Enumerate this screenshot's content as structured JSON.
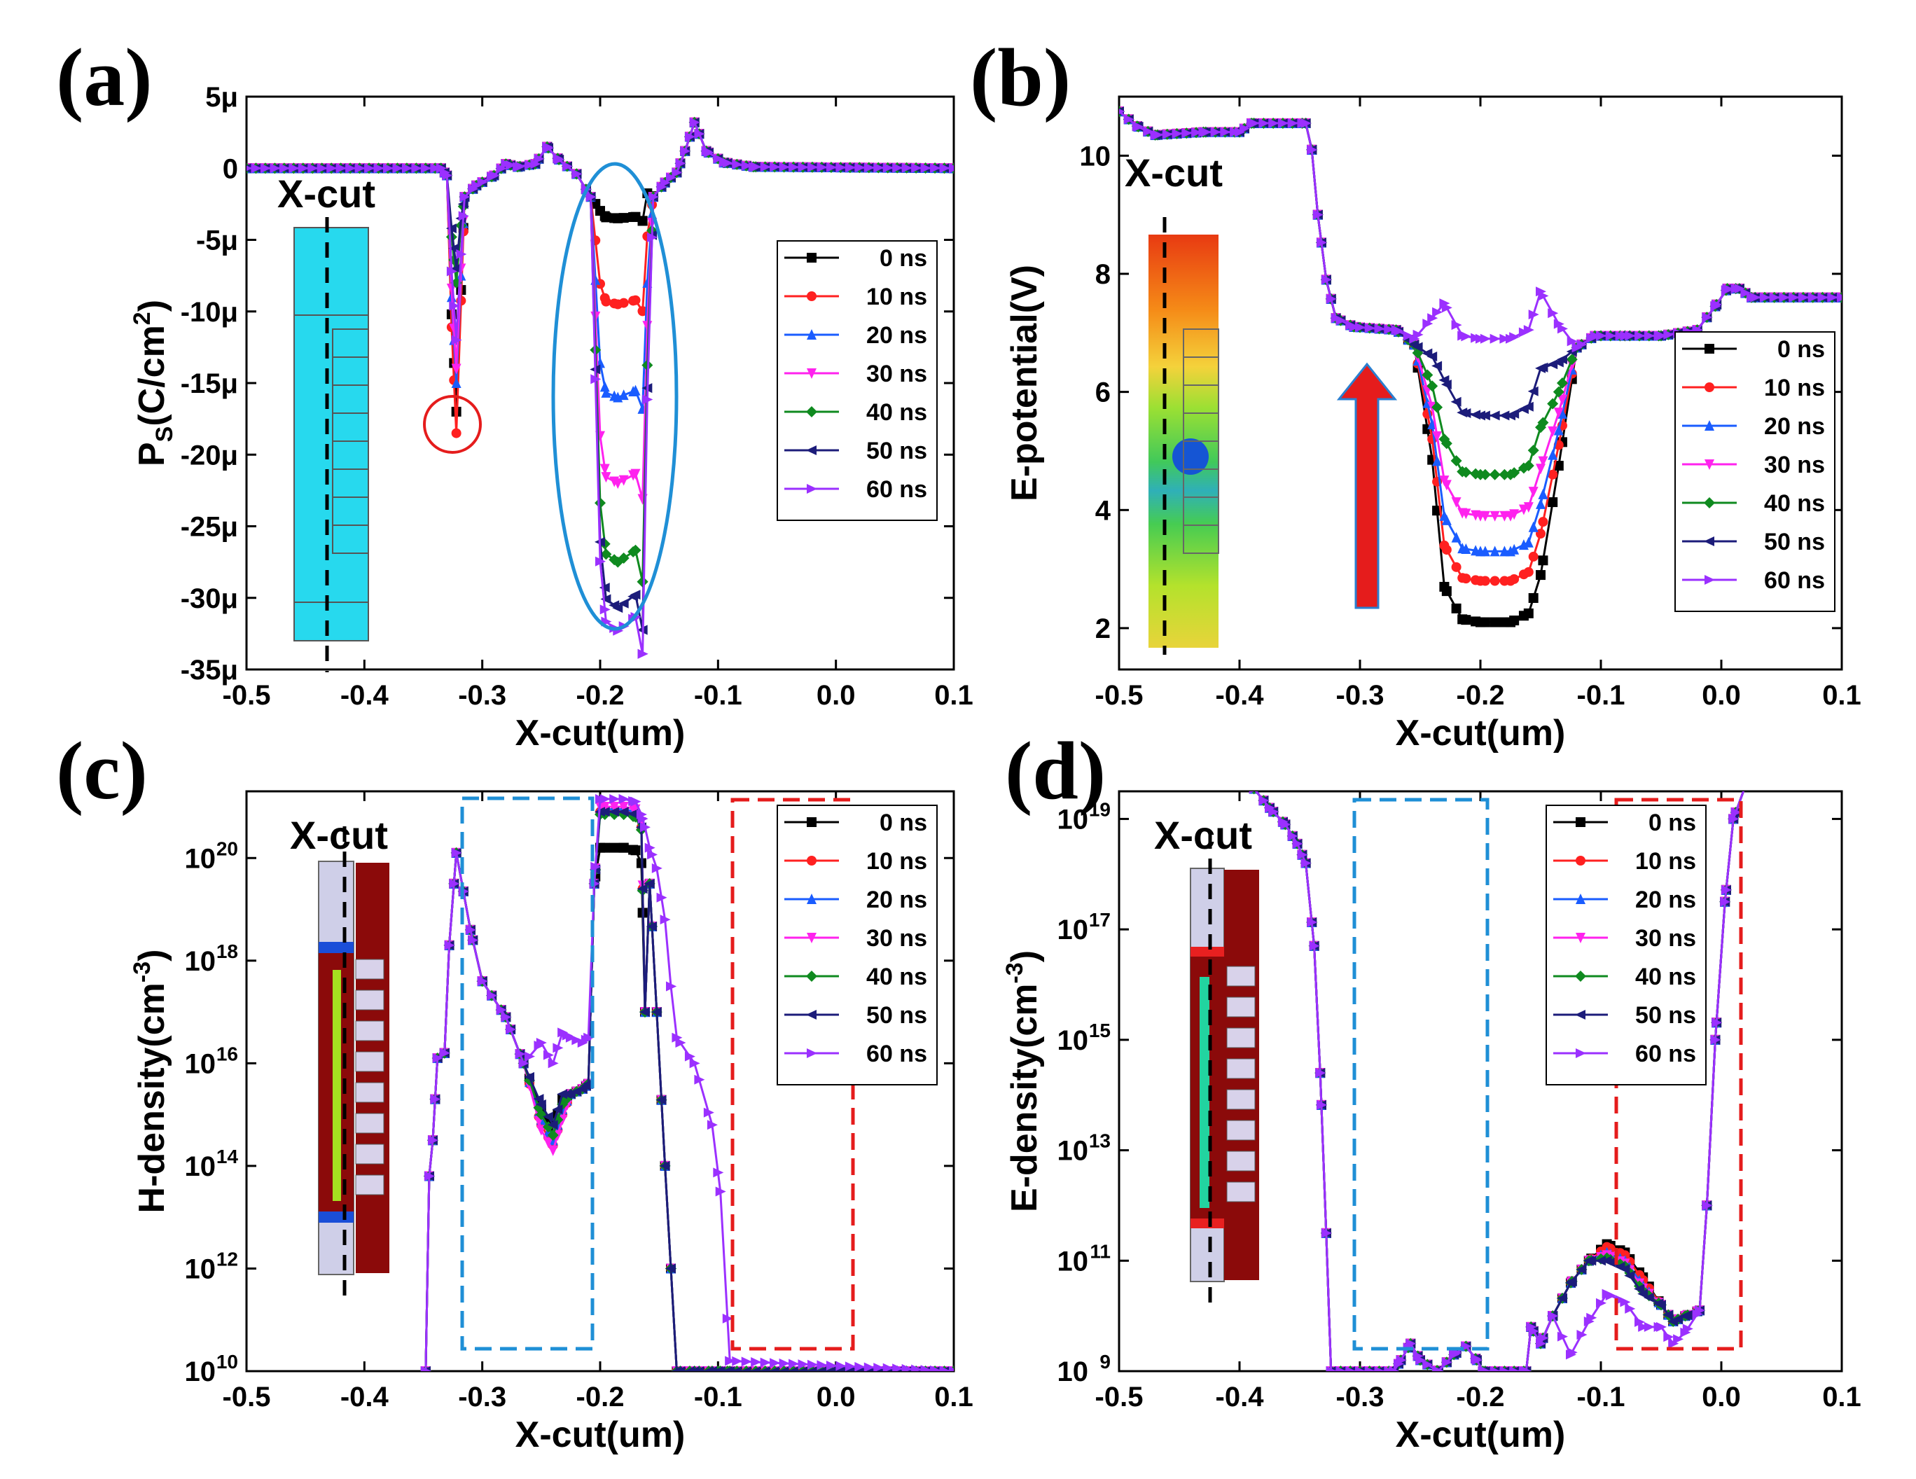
{
  "colors": {
    "0 ns": "#000000",
    "10 ns": "#ff2020",
    "20 ns": "#1a5cff",
    "30 ns": "#ff22ee",
    "40 ns": "#0f8a1f",
    "50 ns": "#1c1c7a",
    "60 ns": "#9b30ff",
    "highlight_blue": "#1f8fd6",
    "highlight_red": "#e51c1c",
    "arrow_fill": "#e51c1c",
    "arrow_edge": "#2a7fd0"
  },
  "chart_data": [
    {
      "panel": "(a)",
      "type": "line",
      "xlabel": "X-cut(um)",
      "ylabel": "P_S(C/cm^2)",
      "ylabel_parts": [
        "P",
        "S",
        "(C/cm",
        "2",
        ")"
      ],
      "xlim": [
        -0.5,
        0.1
      ],
      "ylim": [
        -35,
        5
      ],
      "yscale": "linear",
      "xticks": [
        -0.5,
        -0.4,
        -0.3,
        -0.2,
        -0.1,
        0.0,
        0.1
      ],
      "xtick_labels": [
        "-0.5",
        "-0.4",
        "-0.3",
        "-0.2",
        "-0.1",
        "0.0",
        "0.1"
      ],
      "yticks": [
        5,
        0,
        -5,
        -10,
        -15,
        -20,
        -25,
        -30,
        -35
      ],
      "ytick_labels": [
        "5μ",
        "0",
        "-5μ",
        "-10μ",
        "-15μ",
        "-20μ",
        "-25μ",
        "-30μ",
        "-35μ"
      ],
      "inset_label": "X-cut",
      "legend_position": "right",
      "annotations": [
        "red circle near x=-0.32 (dip)",
        "blue ellipse around -0.2 to -0.16 trough"
      ],
      "series": [
        {
          "name": "0 ns",
          "trough": -3.5,
          "dip": -17
        },
        {
          "name": "10 ns",
          "trough": -9.5,
          "dip": -18.5
        },
        {
          "name": "20 ns",
          "trough": -16,
          "dip": -15
        },
        {
          "name": "30 ns",
          "trough": -22,
          "dip": -14
        },
        {
          "name": "40 ns",
          "trough": -27.5,
          "dip": -8
        },
        {
          "name": "50 ns",
          "trough": -30.7,
          "dip": -7
        },
        {
          "name": "60 ns",
          "trough": -32.3,
          "dip": -12
        }
      ]
    },
    {
      "panel": "(b)",
      "type": "line",
      "xlabel": "X-cut(um)",
      "ylabel": "E-potential(V)",
      "xlim": [
        -0.5,
        0.1
      ],
      "ylim": [
        1.3,
        11
      ],
      "yscale": "linear",
      "xticks": [
        -0.5,
        -0.4,
        -0.3,
        -0.2,
        -0.1,
        0.0,
        0.1
      ],
      "xtick_labels": [
        "-0.5",
        "-0.4",
        "-0.3",
        "-0.2",
        "-0.1",
        "0.0",
        "0.1"
      ],
      "yticks": [
        10,
        8,
        6,
        4,
        2
      ],
      "ytick_labels": [
        "10",
        "8",
        "6",
        "4",
        "2"
      ],
      "inset_label": "X-cut",
      "legend_position": "right",
      "annotations": [
        "red upward arrow at x≈-0.3"
      ],
      "series": [
        {
          "name": "0 ns",
          "min": 2.1
        },
        {
          "name": "10 ns",
          "min": 2.8
        },
        {
          "name": "20 ns",
          "min": 3.3
        },
        {
          "name": "30 ns",
          "min": 3.9
        },
        {
          "name": "40 ns",
          "min": 4.6
        },
        {
          "name": "50 ns",
          "min": 5.6
        },
        {
          "name": "60 ns",
          "min": 6.9
        }
      ]
    },
    {
      "panel": "(c)",
      "type": "line",
      "xlabel": "X-cut(um)",
      "ylabel": "H-density(cm^-3)",
      "ylabel_parts": [
        "H-density(cm",
        "-3",
        ")"
      ],
      "xlim": [
        -0.5,
        0.1
      ],
      "ylim": [
        10,
        21.3
      ],
      "yscale": "log10",
      "xticks": [
        -0.5,
        -0.4,
        -0.3,
        -0.2,
        -0.1,
        0.0,
        0.1
      ],
      "xtick_labels": [
        "-0.5",
        "-0.4",
        "-0.3",
        "-0.2",
        "-0.1",
        "0.0",
        "0.1"
      ],
      "yticks": [
        20,
        18,
        16,
        14,
        12,
        10
      ],
      "ytick_labels": [
        "10",
        "10",
        "10",
        "10",
        "10",
        "10"
      ],
      "ytick_exponents": [
        "20",
        "18",
        "16",
        "14",
        "12",
        "10"
      ],
      "inset_label": "X-cut",
      "legend_position": "top-right",
      "annotations": [
        "blue dashed box x -0.32 to -0.21",
        "red dashed box x -0.09 to 0.01"
      ],
      "series": [
        {
          "name": "0 ns",
          "plateau": 20.2,
          "valley": 14.7
        },
        {
          "name": "10 ns",
          "plateau": 20.9,
          "valley": 14.4
        },
        {
          "name": "20 ns",
          "plateau": 20.95,
          "valley": 14.5
        },
        {
          "name": "30 ns",
          "plateau": 21.0,
          "valley": 14.3
        },
        {
          "name": "40 ns",
          "plateau": 20.85,
          "valley": 14.6
        },
        {
          "name": "50 ns",
          "plateau": 20.9,
          "valley": 14.8
        },
        {
          "name": "60 ns",
          "plateau": 21.15,
          "valley": 16.0
        }
      ]
    },
    {
      "panel": "(d)",
      "type": "line",
      "xlabel": "X-cut(um)",
      "ylabel": "E-density(cm^-3)",
      "ylabel_parts": [
        "E-density(cm",
        "-3",
        ")"
      ],
      "xlim": [
        -0.5,
        0.1
      ],
      "ylim": [
        9,
        19.5
      ],
      "yscale": "log10",
      "xticks": [
        -0.5,
        -0.4,
        -0.3,
        -0.2,
        -0.1,
        0.0,
        0.1
      ],
      "xtick_labels": [
        "-0.5",
        "-0.4",
        "-0.3",
        "-0.2",
        "-0.1",
        "0.0",
        "0.1"
      ],
      "yticks": [
        19,
        17,
        15,
        13,
        11,
        9
      ],
      "ytick_labels": [
        "10",
        "10",
        "10",
        "10",
        "10",
        "10"
      ],
      "ytick_exponents": [
        "19",
        "17",
        "15",
        "13",
        "11",
        "9"
      ],
      "inset_label": "X-cut",
      "legend_position": "top-right",
      "annotations": [
        "blue dashed box x -0.32 to -0.21",
        "red dashed box x -0.095 to 0.015"
      ],
      "series": [
        {
          "name": "0 ns",
          "bump": 11.3
        },
        {
          "name": "10 ns",
          "bump": 11.25
        },
        {
          "name": "20 ns",
          "bump": 11.15
        },
        {
          "name": "30 ns",
          "bump": 11.1
        },
        {
          "name": "40 ns",
          "bump": 11.05
        },
        {
          "name": "50 ns",
          "bump": 11.0
        },
        {
          "name": "60 ns",
          "bump": 10.4
        }
      ]
    }
  ]
}
